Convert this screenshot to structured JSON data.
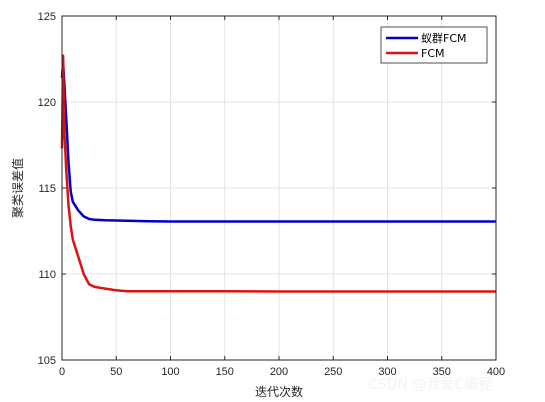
{
  "chart_data": {
    "type": "line",
    "title": "",
    "xlabel": "迭代次数",
    "ylabel": "聚类误差值",
    "xlim": [
      0,
      400
    ],
    "ylim": [
      105,
      125
    ],
    "xticks": [
      0,
      50,
      100,
      150,
      200,
      250,
      300,
      350,
      400
    ],
    "yticks": [
      105,
      110,
      115,
      120,
      125
    ],
    "grid": true,
    "legend_position": "top-right",
    "series": [
      {
        "name": "蚁群FCM",
        "color": "#0000cc",
        "x": [
          0,
          1,
          2,
          4,
          6,
          8,
          10,
          15,
          20,
          25,
          30,
          40,
          60,
          80,
          100,
          150,
          200,
          250,
          300,
          350,
          400
        ],
        "y": [
          121.4,
          122.3,
          121.2,
          119.0,
          116.5,
          114.8,
          114.2,
          113.7,
          113.35,
          113.2,
          113.15,
          113.12,
          113.1,
          113.07,
          113.05,
          113.05,
          113.05,
          113.05,
          113.05,
          113.05,
          113.05
        ]
      },
      {
        "name": "FCM",
        "color": "#dd1111",
        "x": [
          0,
          1,
          2,
          4,
          6,
          8,
          10,
          15,
          20,
          25,
          30,
          35,
          40,
          50,
          60,
          80,
          100,
          150,
          200,
          250,
          300,
          350,
          400
        ],
        "y": [
          117.3,
          122.7,
          118.5,
          116.0,
          114.0,
          112.8,
          112.0,
          111.0,
          110.0,
          109.4,
          109.25,
          109.2,
          109.15,
          109.05,
          109.0,
          109.0,
          109.0,
          109.0,
          108.98,
          108.98,
          108.98,
          108.98,
          108.98
        ]
      }
    ]
  },
  "watermark": "CSDN @我爱C编程"
}
